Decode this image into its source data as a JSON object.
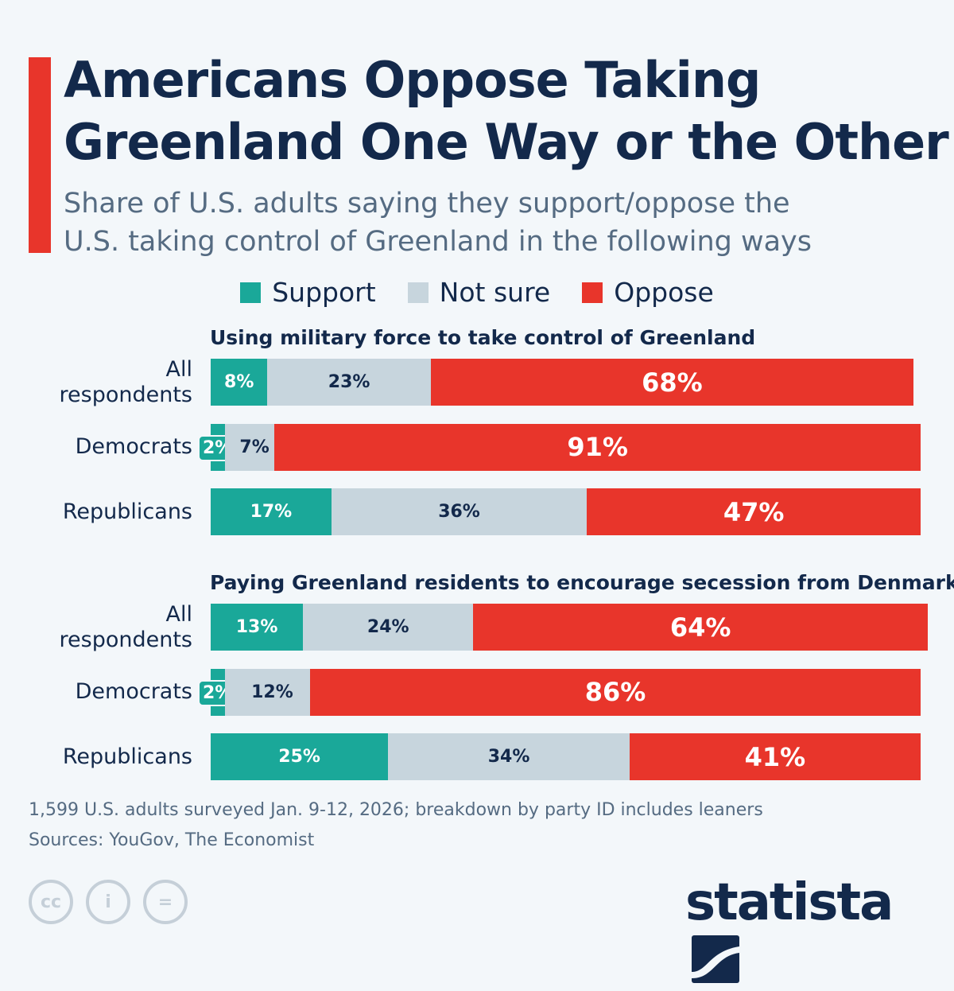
{
  "header": {
    "title_line1": "Americans Oppose Taking",
    "title_line2": "Greenland One Way or the Other",
    "subtitle_line1": "Share of U.S. adults saying they support/oppose the",
    "subtitle_line2": "U.S. taking control of Greenland in the following ways"
  },
  "colors": {
    "support": "#1aa899",
    "not_sure": "#c7d5dd",
    "oppose": "#e8352b",
    "accent": "#e8352b"
  },
  "chart_data": {
    "type": "bar",
    "orientation": "horizontal",
    "stacked": true,
    "legend": [
      "Support",
      "Not sure",
      "Oppose"
    ],
    "legend_position": "top",
    "groups": [
      {
        "title": "Using military force to take control of Greenland",
        "categories": [
          "All respondents",
          "Democrats",
          "Republicans"
        ],
        "series": [
          {
            "name": "Support",
            "values": [
              8,
              2,
              17
            ]
          },
          {
            "name": "Not sure",
            "values": [
              23,
              7,
              36
            ]
          },
          {
            "name": "Oppose",
            "values": [
              68,
              91,
              47
            ]
          }
        ]
      },
      {
        "title": "Paying Greenland residents to encourage secession from Denmark",
        "categories": [
          "All respondents",
          "Democrats",
          "Republicans"
        ],
        "series": [
          {
            "name": "Support",
            "values": [
              13,
              2,
              25
            ]
          },
          {
            "name": "Not sure",
            "values": [
              24,
              12,
              34
            ]
          },
          {
            "name": "Oppose",
            "values": [
              64,
              86,
              41
            ]
          }
        ]
      }
    ]
  },
  "footer": {
    "note": "1,599 U.S. adults surveyed Jan. 9-12, 2026; breakdown by party ID includes leaners",
    "sources": "Sources: YouGov, The Economist",
    "logo": "statista",
    "cc_icons": [
      "cc",
      "by",
      "nd"
    ]
  }
}
